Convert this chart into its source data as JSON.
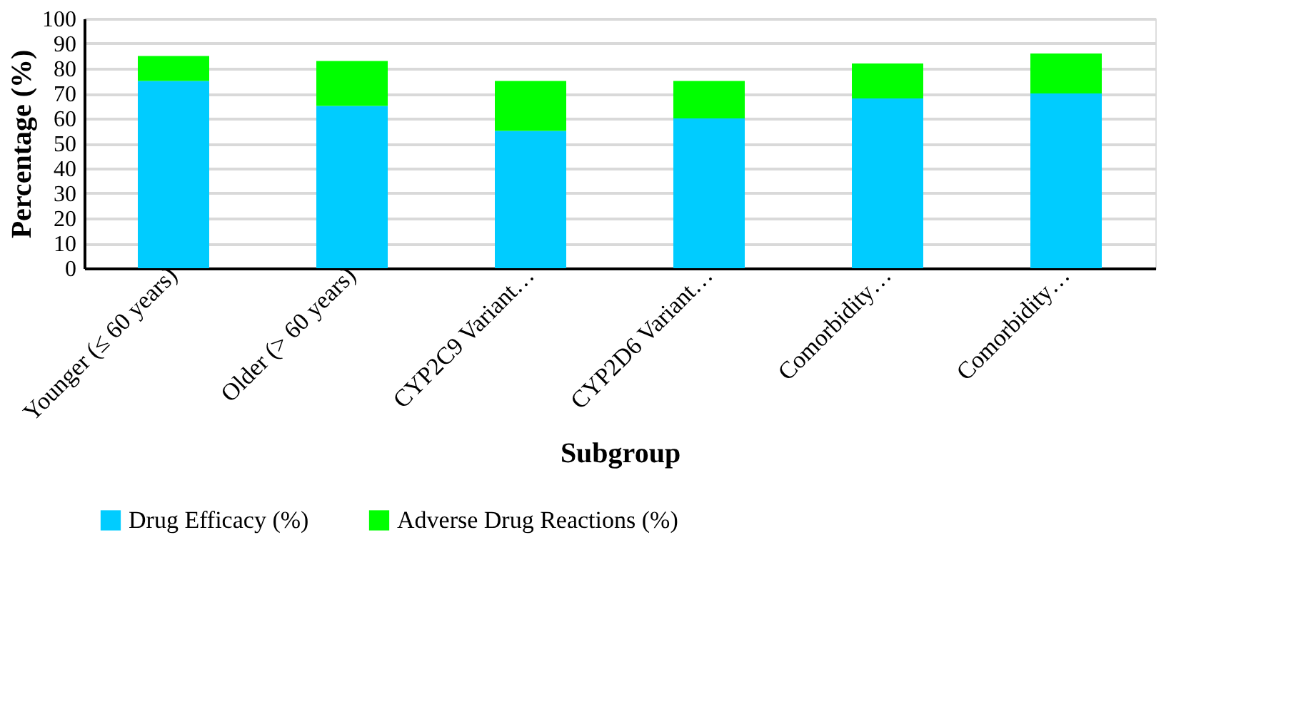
{
  "chart_data": {
    "type": "bar",
    "stacked": true,
    "categories": [
      "Younger (≤ 60 years)",
      "Older (> 60 years)",
      "CYP2C9 Variant…",
      "CYP2D6 Variant…",
      "Comorbidity…",
      "Comorbidity…"
    ],
    "series": [
      {
        "name": "Drug Efficacy (%)",
        "color": "#00ccff",
        "values": [
          75,
          65,
          55,
          60,
          68,
          70
        ]
      },
      {
        "name": "Adverse Drug Reactions (%)",
        "color": "#00ff00",
        "values": [
          10,
          18,
          20,
          15,
          14,
          16
        ]
      }
    ],
    "xlabel": "Subgroup",
    "ylabel": "Percentage (%)",
    "ylim": [
      0,
      100
    ],
    "yticks": [
      0,
      10,
      20,
      30,
      40,
      50,
      60,
      70,
      80,
      90,
      100
    ],
    "grid": "y",
    "legend": "bottom"
  }
}
